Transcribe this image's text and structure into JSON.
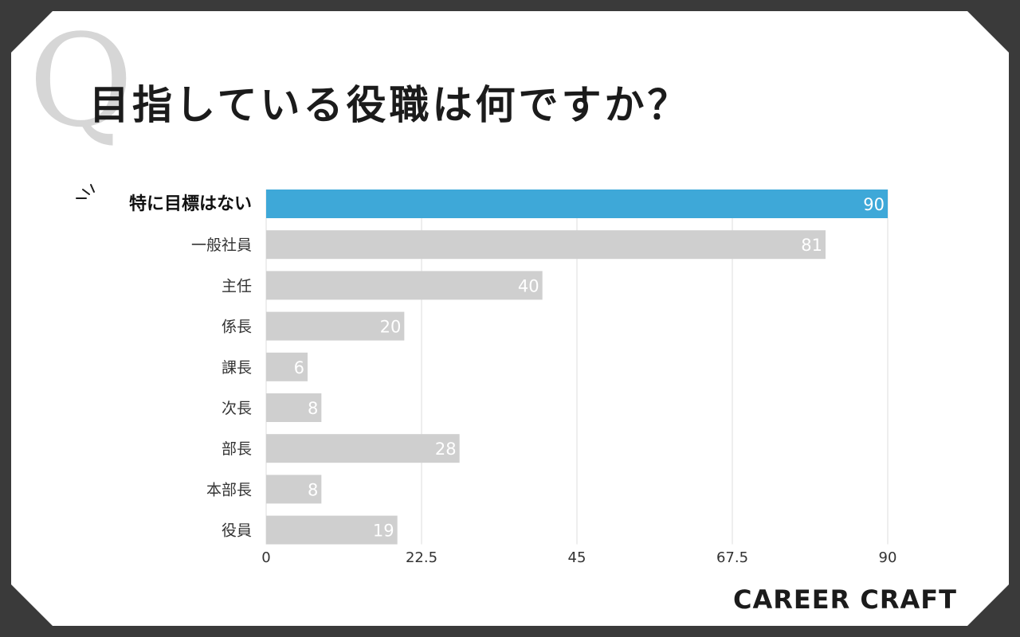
{
  "header": {
    "q_mark": "Q",
    "title": "目指している役職は何ですか？"
  },
  "brand": "CAREER CRAFT",
  "colors": {
    "highlight": "#3ea8d8",
    "bar": "#cfcfcf",
    "grid": "#dedede",
    "value_label": "#ffffff",
    "background": "#ffffff",
    "frame": "#3a3a3a"
  },
  "chart_data": {
    "type": "bar",
    "orientation": "horizontal",
    "title": "目指している役職は何ですか？",
    "categories": [
      "特に目標はない",
      "一般社員",
      "主任",
      "係長",
      "課長",
      "次長",
      "部長",
      "本部長",
      "役員"
    ],
    "values": [
      90,
      81,
      40,
      20,
      6,
      8,
      28,
      8,
      19
    ],
    "highlight_index": 0,
    "xlim": [
      0,
      90
    ],
    "xticks": [
      "0",
      "22.5",
      "45",
      "67.5",
      "90"
    ],
    "xtick_values": [
      0,
      22.5,
      45,
      67.5,
      90
    ],
    "grid": true,
    "data_labels": true,
    "xlabel": "",
    "ylabel": ""
  }
}
